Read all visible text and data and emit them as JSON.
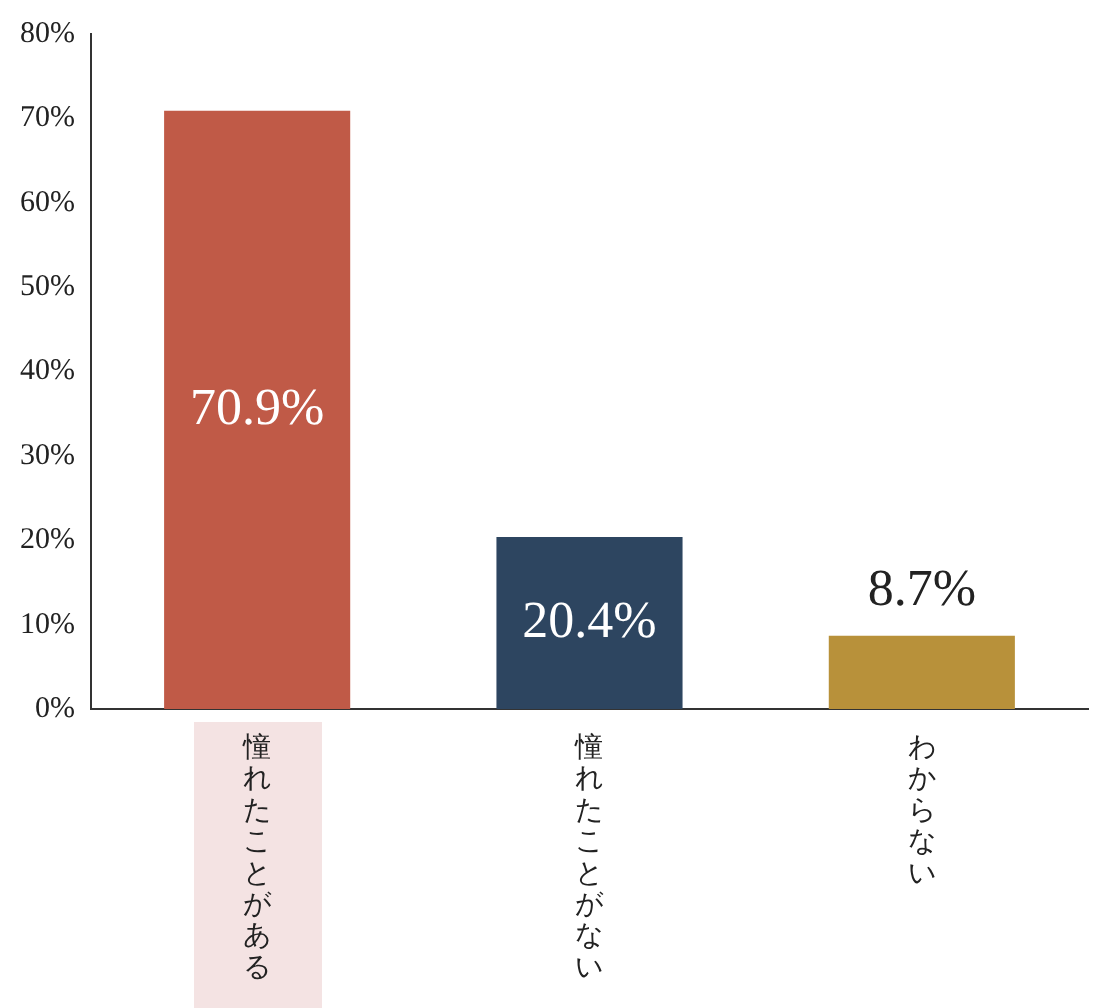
{
  "chart_data": {
    "type": "bar",
    "categories": [
      "憧れたことがある",
      "憧れたことがない",
      "わからない"
    ],
    "values": [
      70.9,
      20.4,
      8.7
    ],
    "colors": [
      "#c05a47",
      "#2d4560",
      "#b8913a"
    ],
    "value_labels": [
      "70.9%",
      "20.4%",
      "8.7%"
    ],
    "ylim": [
      0,
      80
    ],
    "yticks": [
      {
        "value": 0,
        "label": "0%"
      },
      {
        "value": 10,
        "label": "10%"
      },
      {
        "value": 20,
        "label": "20%"
      },
      {
        "value": 30,
        "label": "30%"
      },
      {
        "value": 40,
        "label": "40%"
      },
      {
        "value": 50,
        "label": "50%"
      },
      {
        "value": 60,
        "label": "60%"
      },
      {
        "value": 70,
        "label": "70%"
      },
      {
        "value": 80,
        "label": "80%"
      }
    ],
    "grid": false,
    "legend": false
  }
}
